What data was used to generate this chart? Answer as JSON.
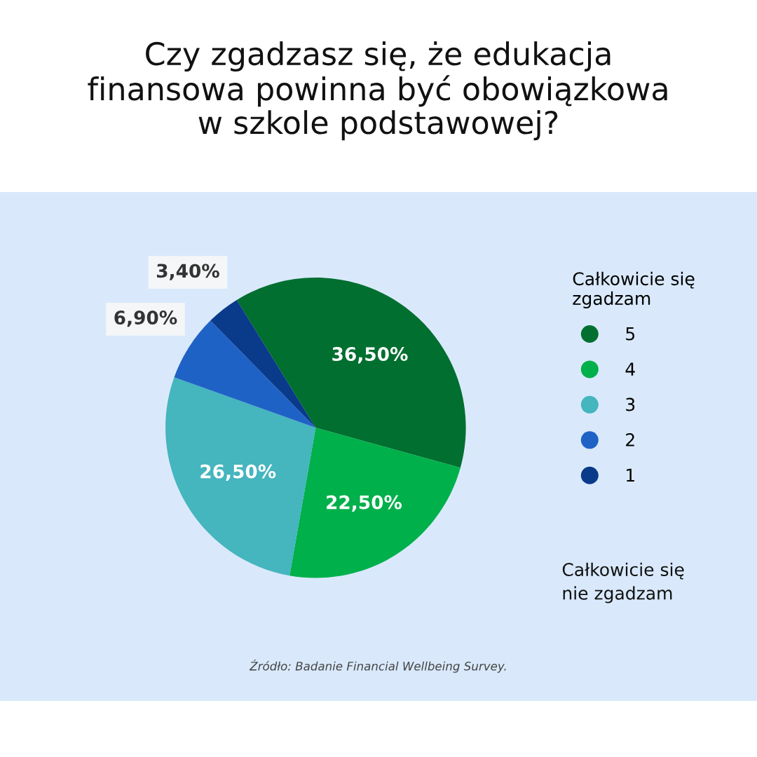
{
  "chart_data": {
    "type": "pie",
    "title": "Czy zgadzasz się, że edukacja\nfinansowa powinna być obowiązkowa\nw szkole podstawowej?",
    "legend_title": "Całkowicie się\nzgadzam",
    "categories": [
      "5",
      "4",
      "3",
      "2",
      "1"
    ],
    "values": [
      36.5,
      22.5,
      26.5,
      6.9,
      3.4
    ],
    "value_labels": [
      "36,50%",
      "22,50%",
      "26,50%",
      "6,90%",
      "3,40%"
    ],
    "colors": [
      "#006f2f",
      "#00b04a",
      "#45b5be",
      "#1f62c6",
      "#0a3a8a"
    ],
    "legend": "right",
    "annotations": [
      "Całkowicie się\nnie zgadzam",
      "Źródło: Badanie Financial Wellbeing Survey."
    ]
  }
}
